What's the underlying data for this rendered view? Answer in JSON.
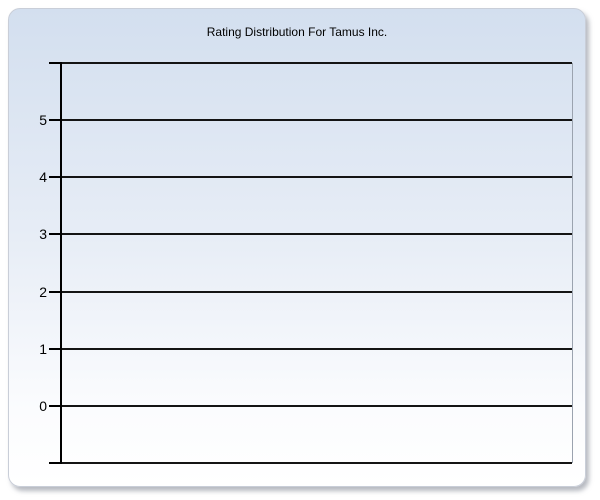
{
  "window": {
    "background": "#ffffff"
  },
  "panel": {
    "background_top": "#d3dfef",
    "background_mid": "#e7edf6",
    "background_bottom": "#ffffff",
    "border_color": "#c9ced8"
  },
  "chart_data": {
    "type": "bar",
    "title": "Rating Distribution For Tamus Inc.",
    "categories": [],
    "values": [],
    "series": [],
    "xlabel": "",
    "ylabel": "",
    "ylim": [
      -1,
      6
    ],
    "y_gridline_step": 1,
    "y_tick_values": [
      5,
      4,
      3,
      2,
      1,
      0
    ],
    "y_tick_labels": [
      "5",
      "4",
      "3",
      "2",
      "1",
      "0"
    ],
    "grid": true,
    "legend": false,
    "axis_color": "#000000",
    "gridline_color": "#141414",
    "plot_border_right_color": "#9ba3af"
  }
}
